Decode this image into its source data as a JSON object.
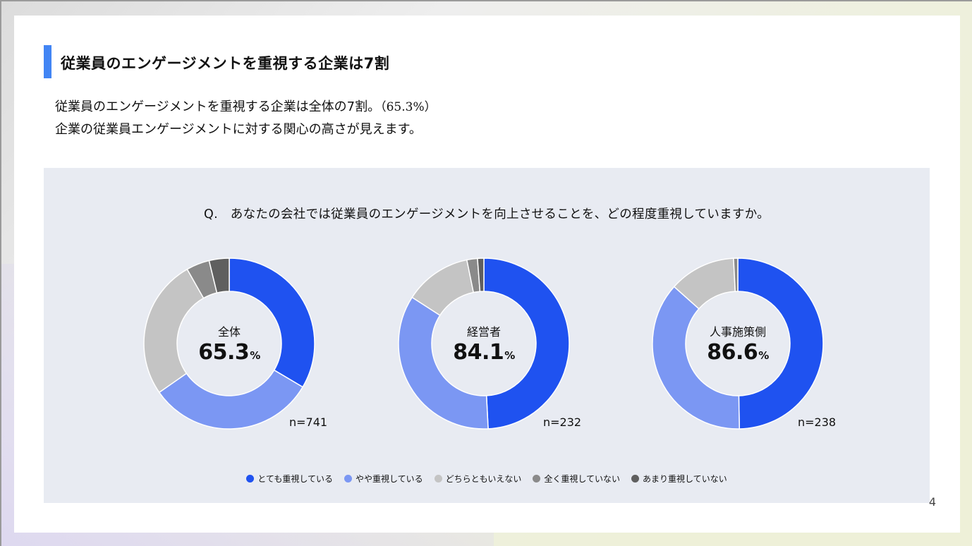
{
  "slide": {
    "title": "従業員のエンゲージメントを重視する企業は7割",
    "description_line1": "従業員のエンゲージメントを重視する企業は全体の7割。",
    "description_pct": "（65.3%）",
    "description_line2": "企業の従業員エンゲージメントに対する関心の高さが見えます。",
    "page_number": "4"
  },
  "colors": {
    "accent_bar": "#4285f4",
    "panel_bg": "#e8ebf2"
  },
  "chart_data": {
    "type": "pie",
    "title": "Q.　あなたの会社では従業員のエンゲージメントを向上させることを、どの程度重視していますか。",
    "categories": [
      "とても重視している",
      "やや重視している",
      "どちらともいえない",
      "全く重視していない",
      "あまり重視していない"
    ],
    "colors": [
      "#1f52f0",
      "#7b97f3",
      "#c4c4c4",
      "#8a8a8a",
      "#5f5f5f"
    ],
    "legend_position": "bottom",
    "donuts": [
      {
        "label": "全体",
        "value": "65.3",
        "unit": "%",
        "n": "n=741",
        "values": [
          33.5,
          31.8,
          26.5,
          4.4,
          3.8
        ]
      },
      {
        "label": "経営者",
        "value": "84.1",
        "unit": "%",
        "n": "n=232",
        "values": [
          49.2,
          34.9,
          12.7,
          2.0,
          1.2
        ]
      },
      {
        "label": "人事施策側",
        "value": "86.6",
        "unit": "%",
        "n": "n=238",
        "values": [
          49.7,
          36.9,
          12.6,
          0.8,
          0.0
        ]
      }
    ]
  }
}
